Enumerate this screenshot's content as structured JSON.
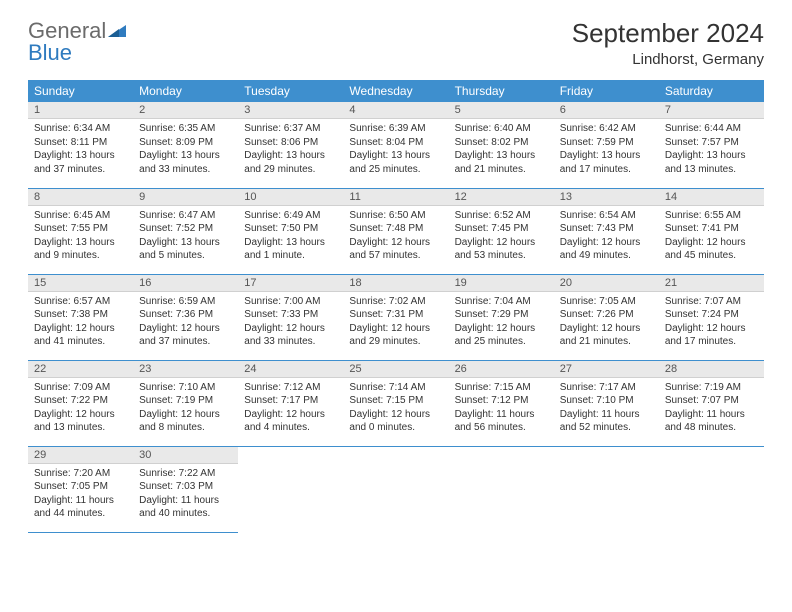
{
  "logo": {
    "text1": "General",
    "text2": "Blue"
  },
  "title": "September 2024",
  "location": "Lindhorst, Germany",
  "colors": {
    "header_bg": "#3e8fce",
    "header_text": "#ffffff",
    "daynum_bg": "#e9e9e9",
    "border": "#3e8fce",
    "text": "#333333",
    "logo_gray": "#6b6b6b",
    "logo_blue": "#2f7bbf"
  },
  "weekdays": [
    "Sunday",
    "Monday",
    "Tuesday",
    "Wednesday",
    "Thursday",
    "Friday",
    "Saturday"
  ],
  "weeks": [
    [
      {
        "n": "1",
        "sr": "6:34 AM",
        "ss": "8:11 PM",
        "dl": "13 hours and 37 minutes."
      },
      {
        "n": "2",
        "sr": "6:35 AM",
        "ss": "8:09 PM",
        "dl": "13 hours and 33 minutes."
      },
      {
        "n": "3",
        "sr": "6:37 AM",
        "ss": "8:06 PM",
        "dl": "13 hours and 29 minutes."
      },
      {
        "n": "4",
        "sr": "6:39 AM",
        "ss": "8:04 PM",
        "dl": "13 hours and 25 minutes."
      },
      {
        "n": "5",
        "sr": "6:40 AM",
        "ss": "8:02 PM",
        "dl": "13 hours and 21 minutes."
      },
      {
        "n": "6",
        "sr": "6:42 AM",
        "ss": "7:59 PM",
        "dl": "13 hours and 17 minutes."
      },
      {
        "n": "7",
        "sr": "6:44 AM",
        "ss": "7:57 PM",
        "dl": "13 hours and 13 minutes."
      }
    ],
    [
      {
        "n": "8",
        "sr": "6:45 AM",
        "ss": "7:55 PM",
        "dl": "13 hours and 9 minutes."
      },
      {
        "n": "9",
        "sr": "6:47 AM",
        "ss": "7:52 PM",
        "dl": "13 hours and 5 minutes."
      },
      {
        "n": "10",
        "sr": "6:49 AM",
        "ss": "7:50 PM",
        "dl": "13 hours and 1 minute."
      },
      {
        "n": "11",
        "sr": "6:50 AM",
        "ss": "7:48 PM",
        "dl": "12 hours and 57 minutes."
      },
      {
        "n": "12",
        "sr": "6:52 AM",
        "ss": "7:45 PM",
        "dl": "12 hours and 53 minutes."
      },
      {
        "n": "13",
        "sr": "6:54 AM",
        "ss": "7:43 PM",
        "dl": "12 hours and 49 minutes."
      },
      {
        "n": "14",
        "sr": "6:55 AM",
        "ss": "7:41 PM",
        "dl": "12 hours and 45 minutes."
      }
    ],
    [
      {
        "n": "15",
        "sr": "6:57 AM",
        "ss": "7:38 PM",
        "dl": "12 hours and 41 minutes."
      },
      {
        "n": "16",
        "sr": "6:59 AM",
        "ss": "7:36 PM",
        "dl": "12 hours and 37 minutes."
      },
      {
        "n": "17",
        "sr": "7:00 AM",
        "ss": "7:33 PM",
        "dl": "12 hours and 33 minutes."
      },
      {
        "n": "18",
        "sr": "7:02 AM",
        "ss": "7:31 PM",
        "dl": "12 hours and 29 minutes."
      },
      {
        "n": "19",
        "sr": "7:04 AM",
        "ss": "7:29 PM",
        "dl": "12 hours and 25 minutes."
      },
      {
        "n": "20",
        "sr": "7:05 AM",
        "ss": "7:26 PM",
        "dl": "12 hours and 21 minutes."
      },
      {
        "n": "21",
        "sr": "7:07 AM",
        "ss": "7:24 PM",
        "dl": "12 hours and 17 minutes."
      }
    ],
    [
      {
        "n": "22",
        "sr": "7:09 AM",
        "ss": "7:22 PM",
        "dl": "12 hours and 13 minutes."
      },
      {
        "n": "23",
        "sr": "7:10 AM",
        "ss": "7:19 PM",
        "dl": "12 hours and 8 minutes."
      },
      {
        "n": "24",
        "sr": "7:12 AM",
        "ss": "7:17 PM",
        "dl": "12 hours and 4 minutes."
      },
      {
        "n": "25",
        "sr": "7:14 AM",
        "ss": "7:15 PM",
        "dl": "12 hours and 0 minutes."
      },
      {
        "n": "26",
        "sr": "7:15 AM",
        "ss": "7:12 PM",
        "dl": "11 hours and 56 minutes."
      },
      {
        "n": "27",
        "sr": "7:17 AM",
        "ss": "7:10 PM",
        "dl": "11 hours and 52 minutes."
      },
      {
        "n": "28",
        "sr": "7:19 AM",
        "ss": "7:07 PM",
        "dl": "11 hours and 48 minutes."
      }
    ],
    [
      {
        "n": "29",
        "sr": "7:20 AM",
        "ss": "7:05 PM",
        "dl": "11 hours and 44 minutes."
      },
      {
        "n": "30",
        "sr": "7:22 AM",
        "ss": "7:03 PM",
        "dl": "11 hours and 40 minutes."
      },
      null,
      null,
      null,
      null,
      null
    ]
  ],
  "labels": {
    "sunrise": "Sunrise: ",
    "sunset": "Sunset: ",
    "daylight": "Daylight: "
  }
}
